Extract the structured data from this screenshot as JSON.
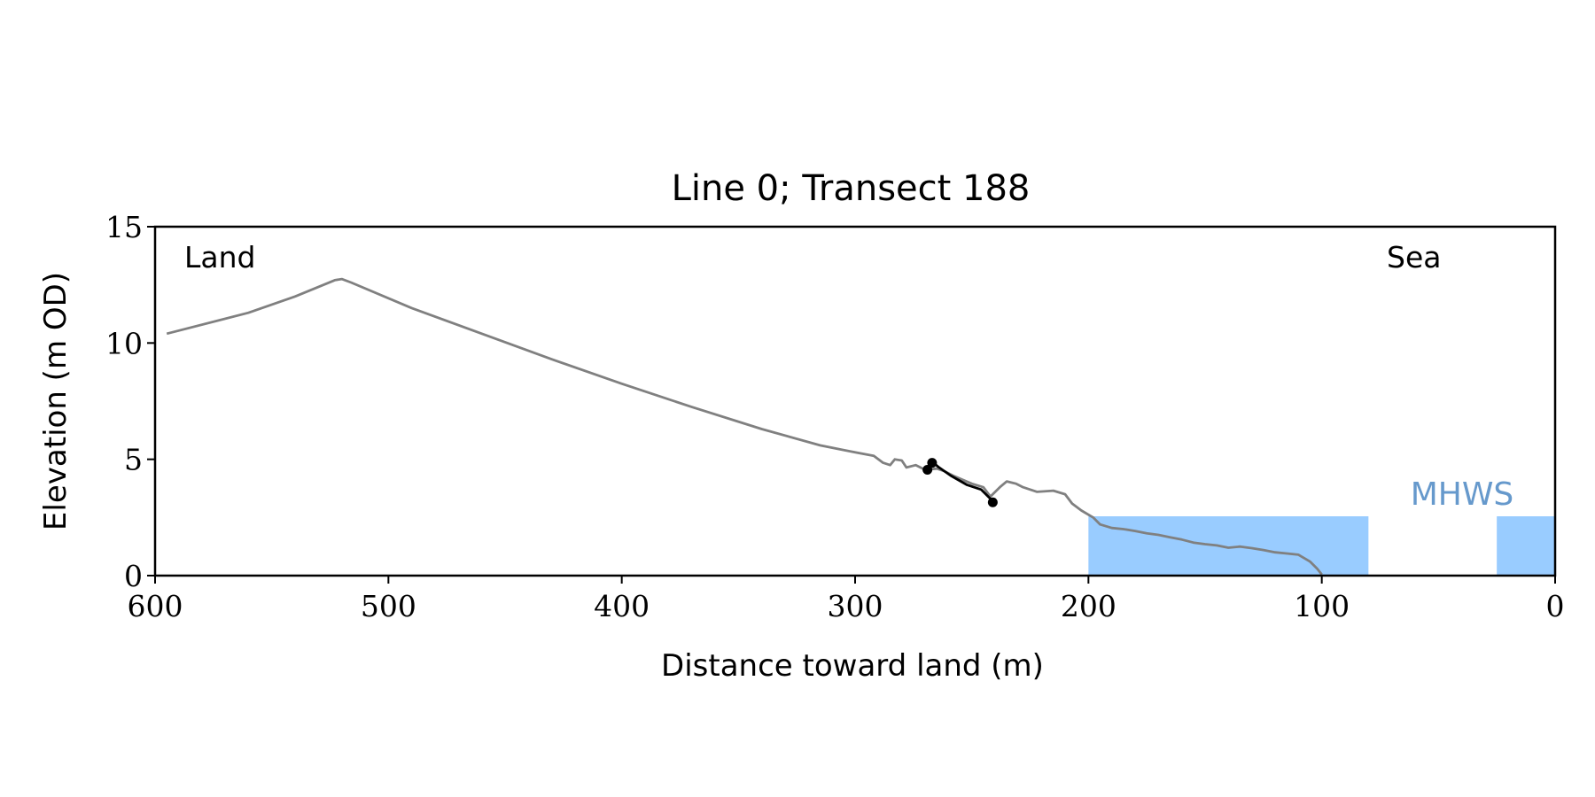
{
  "chart_data": {
    "type": "line",
    "title": "Line 0; Transect 188",
    "xlabel": "Distance toward land (m)",
    "ylabel": "Elevation (m OD)",
    "xlim": [
      600,
      0
    ],
    "ylim": [
      0,
      15
    ],
    "x_axis_reversed": true,
    "x_ticks": [
      600,
      500,
      400,
      300,
      200,
      100,
      0
    ],
    "x_tick_labels": [
      "600",
      "500",
      "400",
      "300",
      "200",
      "100",
      "0"
    ],
    "y_ticks": [
      0,
      5,
      10,
      15
    ],
    "y_tick_labels": [
      "0",
      "5",
      "10",
      "15"
    ],
    "grid": false,
    "annotations": {
      "land_label": "Land",
      "sea_label": "Sea",
      "mhws_label": "MHWS"
    },
    "colors": {
      "profile": "#808080",
      "segment": "#000000",
      "mhws_fill": "#99ccff",
      "mhws_text": "#6699cc"
    },
    "mhws": {
      "level": 2.55,
      "regions": [
        [
          200,
          80
        ],
        [
          25,
          0
        ]
      ]
    },
    "series": [
      {
        "points": [
          [
            595,
            10.4
          ],
          [
            560,
            11.3
          ],
          [
            540,
            12.0
          ],
          [
            523,
            12.7
          ],
          [
            520,
            12.75
          ],
          [
            516,
            12.6
          ],
          [
            490,
            11.5
          ],
          [
            460,
            10.4
          ],
          [
            430,
            9.3
          ],
          [
            400,
            8.25
          ],
          [
            370,
            7.25
          ],
          [
            340,
            6.3
          ],
          [
            315,
            5.6
          ],
          [
            300,
            5.3
          ],
          [
            292,
            5.15
          ],
          [
            288,
            4.85
          ],
          [
            285,
            4.75
          ],
          [
            283,
            5.0
          ],
          [
            280,
            4.95
          ],
          [
            278,
            4.65
          ],
          [
            274,
            4.75
          ],
          [
            270,
            4.55
          ],
          [
            265,
            4.6
          ],
          [
            262,
            4.5
          ],
          [
            258,
            4.3
          ],
          [
            250,
            3.95
          ],
          [
            245,
            3.8
          ],
          [
            242,
            3.4
          ],
          [
            238,
            3.8
          ],
          [
            235,
            4.05
          ],
          [
            231,
            3.95
          ],
          [
            228,
            3.8
          ],
          [
            222,
            3.6
          ],
          [
            215,
            3.65
          ],
          [
            210,
            3.5
          ],
          [
            207,
            3.1
          ],
          [
            203,
            2.8
          ],
          [
            198,
            2.5
          ],
          [
            195,
            2.2
          ],
          [
            190,
            2.05
          ],
          [
            185,
            2.0
          ],
          [
            180,
            1.92
          ],
          [
            175,
            1.82
          ],
          [
            170,
            1.75
          ],
          [
            165,
            1.65
          ],
          [
            160,
            1.55
          ],
          [
            155,
            1.42
          ],
          [
            150,
            1.35
          ],
          [
            145,
            1.3
          ],
          [
            140,
            1.2
          ],
          [
            135,
            1.25
          ],
          [
            130,
            1.18
          ],
          [
            125,
            1.1
          ],
          [
            120,
            1.0
          ],
          [
            115,
            0.95
          ],
          [
            110,
            0.9
          ],
          [
            105,
            0.6
          ],
          [
            102,
            0.3
          ],
          [
            100,
            0.05
          ]
        ]
      },
      {
        "points": [
          [
            269,
            4.55
          ],
          [
            267,
            4.9
          ],
          [
            264,
            4.65
          ],
          [
            259,
            4.3
          ],
          [
            252,
            3.9
          ],
          [
            246,
            3.7
          ],
          [
            242,
            3.3
          ],
          [
            241,
            3.15
          ]
        ],
        "markers": [
          [
            269,
            4.55
          ],
          [
            267,
            4.85
          ],
          [
            241,
            3.15
          ]
        ]
      }
    ]
  }
}
